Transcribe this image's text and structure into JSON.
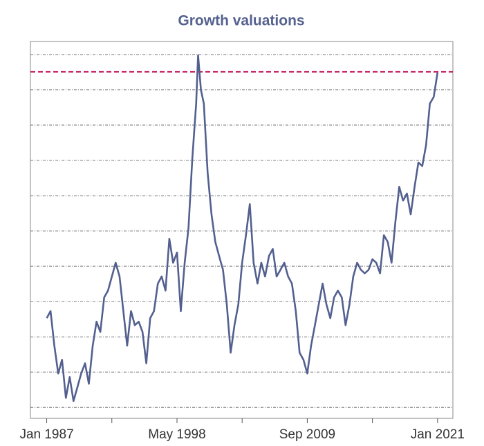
{
  "chart_data": {
    "type": "line",
    "title": "Growth valuations",
    "color": "#53608f",
    "x": [
      "1987-01",
      "1987-05",
      "1987-09",
      "1988-01",
      "1988-05",
      "1988-09",
      "1989-01",
      "1989-05",
      "1989-09",
      "1990-01",
      "1990-05",
      "1990-09",
      "1991-01",
      "1991-05",
      "1991-09",
      "1992-01",
      "1992-05",
      "1992-09",
      "1993-01",
      "1993-05",
      "1993-09",
      "1994-01",
      "1994-05",
      "1994-09",
      "1995-01",
      "1995-05",
      "1995-09",
      "1996-01",
      "1996-05",
      "1996-09",
      "1997-01",
      "1997-05",
      "1997-09",
      "1998-01",
      "1998-05",
      "1998-09",
      "1999-01",
      "1999-05",
      "1999-09",
      "2000-01",
      "2000-03",
      "2000-06",
      "2000-09",
      "2001-01",
      "2001-05",
      "2001-09",
      "2002-01",
      "2002-05",
      "2002-09",
      "2003-01",
      "2003-05",
      "2003-09",
      "2004-01",
      "2004-05",
      "2004-09",
      "2005-01",
      "2005-05",
      "2005-09",
      "2006-01",
      "2006-05",
      "2006-09",
      "2007-01",
      "2007-05",
      "2007-09",
      "2008-01",
      "2008-05",
      "2008-09",
      "2009-01",
      "2009-05",
      "2009-09",
      "2010-01",
      "2010-05",
      "2010-09",
      "2011-01",
      "2011-05",
      "2011-09",
      "2012-01",
      "2012-05",
      "2012-09",
      "2013-01",
      "2013-05",
      "2013-09",
      "2014-01",
      "2014-05",
      "2014-09",
      "2015-01",
      "2015-05",
      "2015-09",
      "2016-01",
      "2016-05",
      "2016-09",
      "2017-01",
      "2017-05",
      "2017-09",
      "2018-01",
      "2018-05",
      "2018-09",
      "2019-01",
      "2019-05",
      "2019-09",
      "2020-01",
      "2020-05",
      "2020-09",
      "2021-01"
    ],
    "values": [
      2.53,
      2.73,
      1.75,
      0.96,
      1.35,
      0.27,
      0.86,
      0.18,
      0.57,
      0.96,
      1.25,
      0.67,
      1.75,
      2.43,
      2.14,
      3.12,
      3.31,
      3.71,
      4.1,
      3.71,
      2.73,
      1.75,
      2.73,
      2.33,
      2.43,
      2.14,
      1.25,
      2.53,
      2.73,
      3.51,
      3.71,
      3.31,
      4.78,
      4.1,
      4.39,
      2.73,
      4.1,
      5.08,
      7.04,
      8.61,
      9.98,
      9.0,
      8.61,
      6.65,
      5.47,
      4.69,
      4.29,
      3.9,
      2.92,
      1.55,
      2.33,
      2.92,
      4.1,
      4.88,
      5.76,
      4.1,
      3.51,
      4.1,
      3.71,
      4.29,
      4.49,
      3.71,
      3.9,
      4.1,
      3.71,
      3.51,
      2.73,
      1.55,
      1.35,
      0.96,
      1.75,
      2.33,
      2.92,
      3.51,
      2.92,
      2.53,
      3.12,
      3.31,
      3.12,
      2.33,
      2.92,
      3.71,
      4.1,
      3.9,
      3.8,
      3.9,
      4.2,
      4.1,
      3.8,
      4.88,
      4.69,
      4.1,
      5.27,
      6.25,
      5.86,
      6.06,
      5.47,
      6.25,
      6.94,
      6.84,
      7.43,
      8.61,
      8.8,
      9.49
    ],
    "xlim": [
      "1985-08",
      "2022-05"
    ],
    "xticks": [
      {
        "value": "1987-01",
        "label": "Jan 1987"
      },
      {
        "value": "1998-05",
        "label": "May 1998"
      },
      {
        "value": "2009-09",
        "label": "Sep 2009"
      },
      {
        "value": "2021-01",
        "label": "Jan 2021"
      }
    ],
    "xminorticks": [
      "1992-09",
      "2004-01",
      "2015-05"
    ],
    "ylim": [
      -0.31,
      10.37
    ],
    "yticks": [
      0,
      1,
      2,
      3,
      4,
      5,
      6,
      7,
      8,
      9,
      10
    ],
    "grid": true,
    "reference_line": {
      "value": 9.51,
      "color": "#c2185b"
    }
  }
}
